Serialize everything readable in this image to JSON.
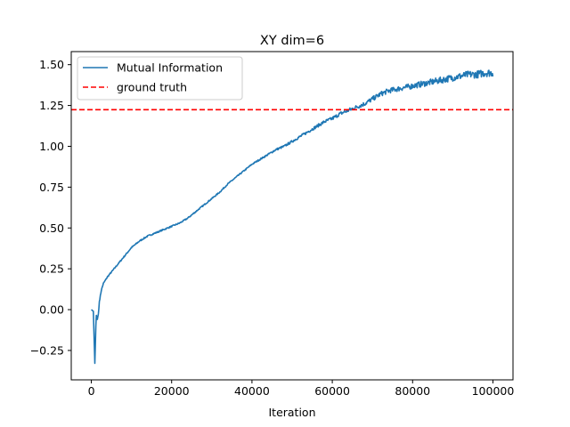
{
  "chart_data": {
    "type": "line",
    "title": "XY dim=6",
    "xlabel": "Iteration",
    "ylabel": "",
    "xlim": [
      -5000,
      105000
    ],
    "ylim": [
      -0.43,
      1.58
    ],
    "x_ticks": [
      0,
      20000,
      40000,
      60000,
      80000,
      100000
    ],
    "x_tick_labels": [
      "0",
      "20000",
      "40000",
      "60000",
      "80000",
      "100000"
    ],
    "y_ticks": [
      -0.25,
      0.0,
      0.25,
      0.5,
      0.75,
      1.0,
      1.25,
      1.5
    ],
    "y_tick_labels": [
      "−0.25",
      "0.00",
      "0.25",
      "0.50",
      "0.75",
      "1.00",
      "1.25",
      "1.50"
    ],
    "grid": false,
    "legend_position": "upper-left",
    "series": [
      {
        "name": "Mutual Information",
        "style": "solid",
        "color": "#1f77b4",
        "x": [
          0,
          500,
          900,
          1000,
          1200,
          1500,
          1800,
          2000,
          2500,
          3000,
          3500,
          4000,
          5000,
          6000,
          7000,
          8000,
          9000,
          10000,
          12000,
          14000,
          16000,
          18000,
          20000,
          22000,
          24000,
          26000,
          28000,
          30000,
          32000,
          34000,
          36000,
          38000,
          40000,
          42000,
          44000,
          46000,
          48000,
          50000,
          52000,
          54000,
          56000,
          58000,
          60000,
          62000,
          64000,
          66000,
          68000,
          70000,
          72000,
          74000,
          76000,
          78000,
          80000,
          82000,
          84000,
          86000,
          88000,
          90000,
          92000,
          94000,
          96000,
          98000,
          100000
        ],
        "y": [
          0.0,
          -0.01,
          -0.35,
          -0.22,
          -0.03,
          -0.06,
          -0.02,
          0.05,
          0.12,
          0.16,
          0.18,
          0.2,
          0.23,
          0.26,
          0.29,
          0.32,
          0.35,
          0.38,
          0.42,
          0.45,
          0.47,
          0.49,
          0.51,
          0.53,
          0.56,
          0.6,
          0.64,
          0.68,
          0.72,
          0.77,
          0.81,
          0.85,
          0.89,
          0.92,
          0.95,
          0.98,
          1.0,
          1.03,
          1.06,
          1.09,
          1.12,
          1.15,
          1.17,
          1.2,
          1.22,
          1.24,
          1.26,
          1.29,
          1.32,
          1.34,
          1.35,
          1.36,
          1.37,
          1.38,
          1.39,
          1.4,
          1.41,
          1.42,
          1.43,
          1.44,
          1.44,
          1.45,
          1.45
        ]
      },
      {
        "name": "ground truth",
        "style": "dashed",
        "color": "#ff0000",
        "y_constant": 1.224
      }
    ]
  }
}
